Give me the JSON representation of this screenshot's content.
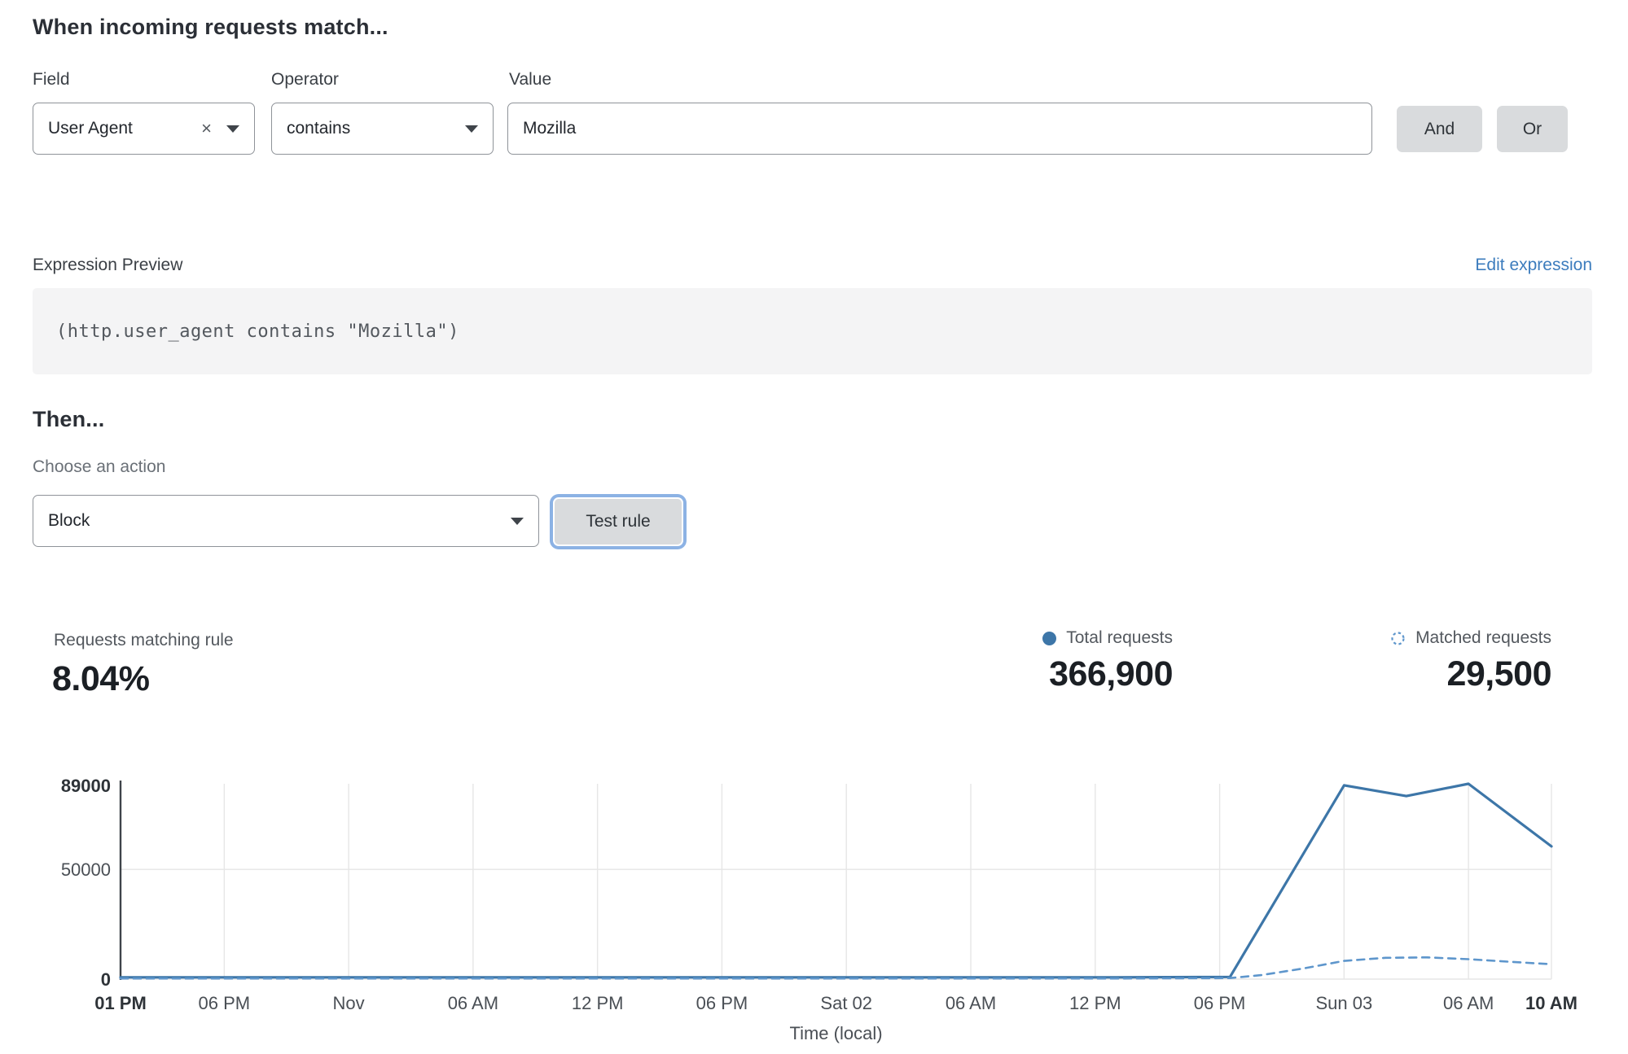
{
  "match_builder": {
    "title": "When incoming requests match...",
    "field": {
      "label": "Field",
      "value": "User Agent",
      "clear_icon": "×"
    },
    "operator": {
      "label": "Operator",
      "value": "contains"
    },
    "value": {
      "label": "Value",
      "value": "Mozilla"
    },
    "and_label": "And",
    "or_label": "Or"
  },
  "expression": {
    "label": "Expression Preview",
    "edit_link": "Edit expression",
    "code": "(http.user_agent contains \"Mozilla\")"
  },
  "action": {
    "title": "Then...",
    "label": "Choose an action",
    "selected": "Block",
    "test_button": "Test rule"
  },
  "stats": {
    "matching": {
      "label": "Requests matching rule",
      "value": "8.04%"
    },
    "total": {
      "label": "Total requests",
      "value": "366,900"
    },
    "matched": {
      "label": "Matched requests",
      "value": "29,500"
    }
  },
  "colors": {
    "solid_line": "#3d76a8",
    "dashed_line": "#5e96cc",
    "grid": "#e6e6e6",
    "axis": "#3f444a",
    "tick_text": "#4a4f55",
    "tick_text_bold": "#2e3338",
    "link": "#3c7cbd",
    "button_bg": "#d9dbdd",
    "focus_ring": "#8cb2e4"
  },
  "chart_data": {
    "type": "line",
    "title": "",
    "xlabel": "Time (local)",
    "ylabel": "",
    "x_unit": "hours from Thu 31 Oct 01 PM (local)",
    "x_range": [
      0,
      69
    ],
    "ylim": [
      0,
      89000
    ],
    "grid": true,
    "legend_position": "top-right",
    "y_ticks": [
      {
        "value": 0,
        "label": "0",
        "bold": true
      },
      {
        "value": 50000,
        "label": "50000",
        "bold": false
      },
      {
        "value": 89000,
        "label": "89000",
        "bold": true
      }
    ],
    "x_ticks": [
      {
        "h": 0,
        "label": "01 PM",
        "bold": true
      },
      {
        "h": 5,
        "label": "06 PM",
        "bold": false
      },
      {
        "h": 11,
        "label": "Nov",
        "bold": false
      },
      {
        "h": 17,
        "label": "06 AM",
        "bold": false
      },
      {
        "h": 23,
        "label": "12 PM",
        "bold": false
      },
      {
        "h": 29,
        "label": "06 PM",
        "bold": false
      },
      {
        "h": 35,
        "label": "Sat 02",
        "bold": false
      },
      {
        "h": 41,
        "label": "06 AM",
        "bold": false
      },
      {
        "h": 47,
        "label": "12 PM",
        "bold": false
      },
      {
        "h": 53,
        "label": "06 PM",
        "bold": false
      },
      {
        "h": 59,
        "label": "Sun 03",
        "bold": false
      },
      {
        "h": 65,
        "label": "06 AM",
        "bold": false
      },
      {
        "h": 69,
        "label": "10 AM",
        "bold": true
      }
    ],
    "series": [
      {
        "name": "Total requests",
        "style": "solid",
        "color": "#3d76a8",
        "points": [
          [
            0,
            800
          ],
          [
            6,
            800
          ],
          [
            12,
            800
          ],
          [
            18,
            800
          ],
          [
            24,
            800
          ],
          [
            30,
            800
          ],
          [
            36,
            800
          ],
          [
            42,
            800
          ],
          [
            48,
            800
          ],
          [
            53.5,
            1000
          ],
          [
            59,
            88300
          ],
          [
            62,
            83400
          ],
          [
            65,
            89000
          ],
          [
            69,
            60500
          ]
        ]
      },
      {
        "name": "Matched requests",
        "style": "dashed",
        "color": "#5e96cc",
        "points": [
          [
            0,
            300
          ],
          [
            6,
            300
          ],
          [
            12,
            300
          ],
          [
            18,
            300
          ],
          [
            24,
            300
          ],
          [
            30,
            300
          ],
          [
            36,
            300
          ],
          [
            42,
            300
          ],
          [
            48,
            300
          ],
          [
            53.5,
            500
          ],
          [
            55,
            1800
          ],
          [
            57,
            4800
          ],
          [
            59,
            8300
          ],
          [
            61,
            9700
          ],
          [
            63,
            9900
          ],
          [
            65,
            9100
          ],
          [
            67,
            7900
          ],
          [
            69,
            6800
          ]
        ]
      }
    ]
  }
}
